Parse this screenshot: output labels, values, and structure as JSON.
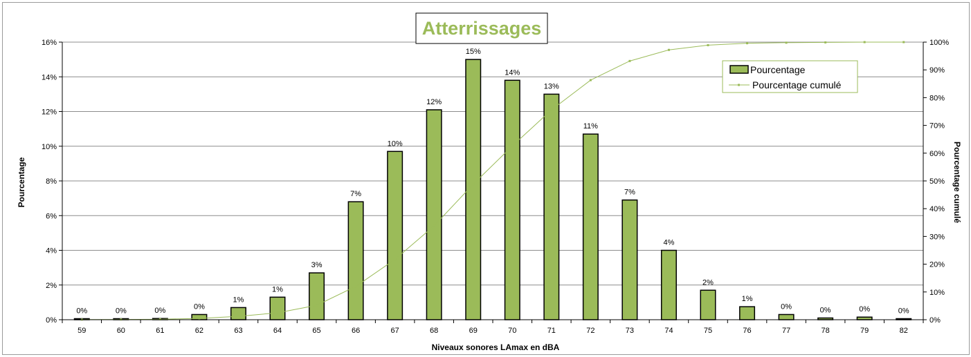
{
  "chart_data": {
    "type": "bar",
    "title": "Atterrissages",
    "xlabel": "Niveaux sonores LAmax en dBA",
    "ylabel": "Pourcentage",
    "y2label": "Pourcentage cumulé",
    "categories": [
      "59",
      "60",
      "61",
      "62",
      "63",
      "64",
      "65",
      "66",
      "67",
      "68",
      "69",
      "70",
      "71",
      "72",
      "73",
      "74",
      "75",
      "76",
      "77",
      "78",
      "79",
      "82"
    ],
    "series": [
      {
        "name": "Pourcentage",
        "type": "bar",
        "axis": "left",
        "color": "#9bbb59",
        "values": [
          0.05,
          0.05,
          0.07,
          0.3,
          0.7,
          1.3,
          2.7,
          6.8,
          9.7,
          12.1,
          15.0,
          13.8,
          13.0,
          10.7,
          6.9,
          4.0,
          1.7,
          0.75,
          0.3,
          0.1,
          0.15,
          0.05
        ],
        "labels": [
          "0%",
          "0%",
          "0%",
          "0%",
          "1%",
          "1%",
          "3%",
          "7%",
          "10%",
          "12%",
          "15%",
          "14%",
          "13%",
          "11%",
          "7%",
          "4%",
          "2%",
          "1%",
          "0%",
          "0%",
          "0%",
          "0%"
        ]
      },
      {
        "name": "Pourcentage cumulé",
        "type": "line",
        "axis": "right",
        "color": "#9bbb59",
        "values": [
          0.05,
          0.1,
          0.17,
          0.47,
          1.2,
          2.5,
          5.2,
          12.0,
          21.7,
          33.8,
          48.8,
          62.6,
          75.6,
          86.3,
          93.2,
          97.2,
          98.9,
          99.6,
          99.8,
          99.9,
          100.0,
          100.0
        ]
      }
    ],
    "yticks": [
      "0%",
      "2%",
      "4%",
      "6%",
      "8%",
      "10%",
      "12%",
      "14%",
      "16%"
    ],
    "y2ticks": [
      "0%",
      "10%",
      "20%",
      "30%",
      "40%",
      "50%",
      "60%",
      "70%",
      "80%",
      "90%",
      "100%"
    ],
    "ylim": [
      0,
      16
    ],
    "y2lim": [
      0,
      100
    ],
    "grid": true,
    "legend_position": "top-right"
  }
}
